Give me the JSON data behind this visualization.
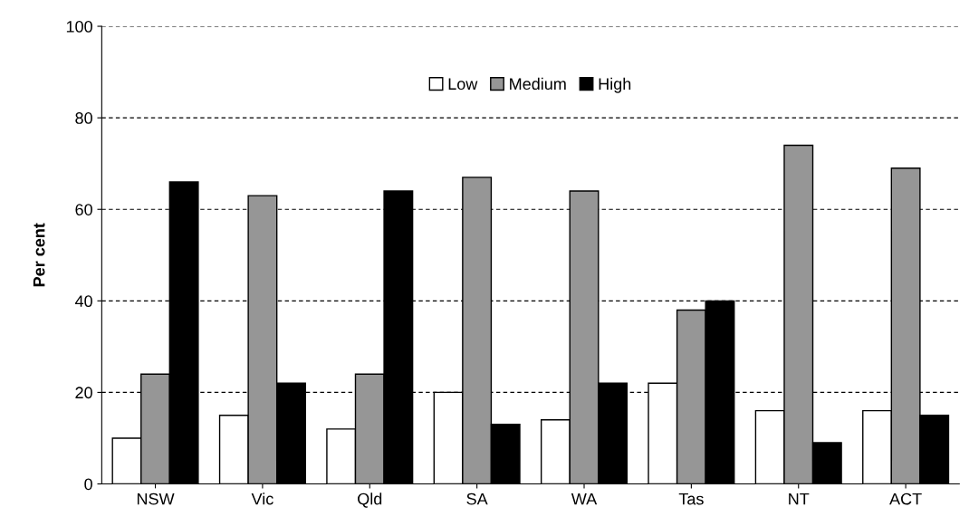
{
  "chart_data": {
    "type": "bar",
    "ylabel": "Per cent",
    "categories": [
      "NSW",
      "Vic",
      "Qld",
      "SA",
      "WA",
      "Tas",
      "NT",
      "ACT"
    ],
    "series": [
      {
        "name": "Low",
        "color": "#ffffff",
        "values": [
          10,
          15,
          12,
          20,
          14,
          22,
          16,
          16
        ]
      },
      {
        "name": "Medium",
        "color": "#969696",
        "values": [
          24,
          63,
          24,
          67,
          64,
          38,
          74,
          69
        ]
      },
      {
        "name": "High",
        "color": "#000000",
        "values": [
          66,
          22,
          64,
          13,
          22,
          40,
          9,
          15
        ]
      }
    ],
    "ylim": [
      0,
      100
    ],
    "yticks": [
      0,
      20,
      40,
      60,
      80,
      100
    ],
    "grid": "y",
    "legend": "top"
  }
}
